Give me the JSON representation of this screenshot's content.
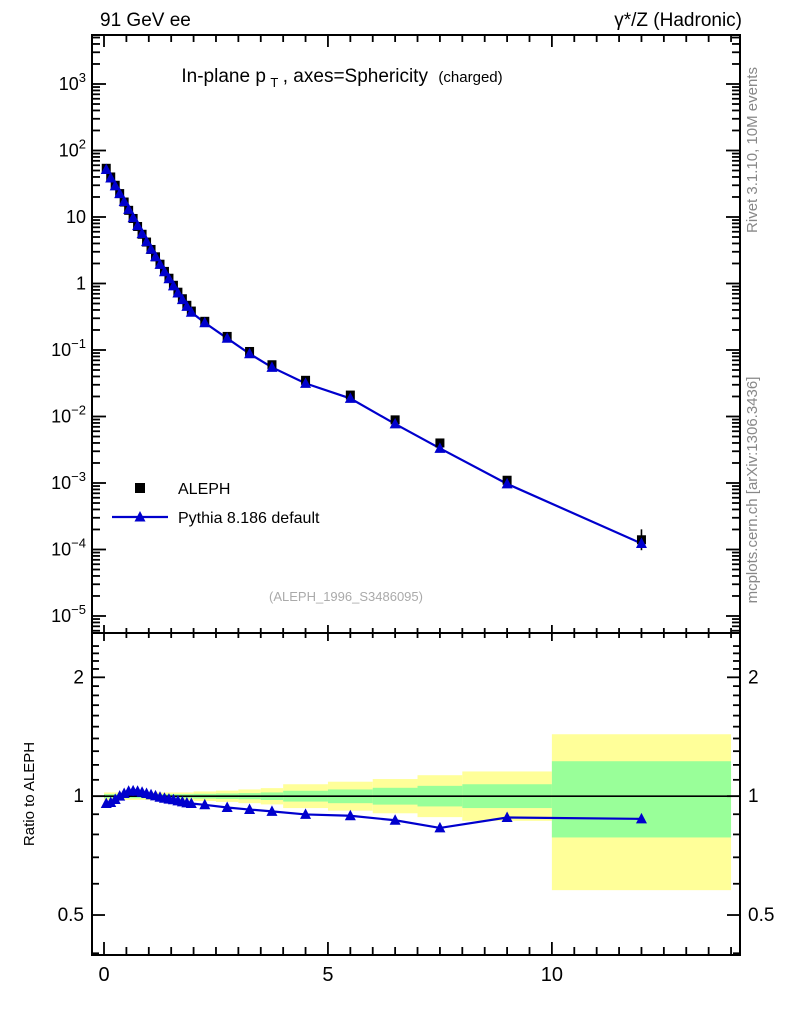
{
  "header": {
    "left": "91 GeV ee",
    "right": "γ*/Z (Hadronic)"
  },
  "title": {
    "part1": "In-plane p",
    "sub": "T",
    "part2": ", axes=Sphericity",
    "part3": "(charged)"
  },
  "side_labels": {
    "top_right": "Rivet 3.1.10,  10M events",
    "bottom_right": "mcplots.cern.ch [arXiv:1306.3436]"
  },
  "watermark": "(ALEPH_1996_S3486095)",
  "ratio_axis_label": "Ratio to ALEPH",
  "legend": [
    {
      "label": "ALEPH",
      "marker": "square",
      "color": "#000000"
    },
    {
      "label": "Pythia 8.186 default",
      "marker": "triangle",
      "color": "#0000cd"
    }
  ],
  "colors": {
    "mc_blue": "#0000cd",
    "band_yellow": "#ffff99",
    "band_green": "#99ff99",
    "frame": "#000000",
    "watermark_gray": "#aaaaaa",
    "side_label_gray": "#888888"
  },
  "chart_data": {
    "type": "line",
    "title": "In-plane pT, axes=Sphericity (charged)",
    "xlabel": "",
    "ylabel": "",
    "x": [
      0.05,
      0.15,
      0.25,
      0.35,
      0.45,
      0.55,
      0.65,
      0.75,
      0.85,
      0.95,
      1.05,
      1.15,
      1.25,
      1.35,
      1.45,
      1.55,
      1.65,
      1.75,
      1.85,
      1.95,
      2.25,
      2.75,
      3.25,
      3.75,
      4.5,
      5.5,
      6.5,
      7.5,
      9,
      12
    ],
    "series": [
      {
        "name": "ALEPH",
        "marker": "square",
        "color": "#000000",
        "values": [
          54,
          40,
          30,
          22.5,
          16.8,
          12.6,
          9.5,
          7.2,
          5.5,
          4.2,
          3.25,
          2.52,
          1.95,
          1.52,
          1.2,
          0.94,
          0.74,
          0.59,
          0.47,
          0.385,
          0.27,
          0.16,
          0.095,
          0.06,
          0.035,
          0.021,
          0.0089,
          0.004,
          0.0011,
          0.00014
        ]
      },
      {
        "name": "Pythia 8.186 default",
        "marker": "triangle",
        "color": "#0000cd",
        "values": [
          51.7,
          38.6,
          29.4,
          22.5,
          17.1,
          13.0,
          9.79,
          7.41,
          5.63,
          4.27,
          3.28,
          2.53,
          1.94,
          1.5,
          1.18,
          0.92,
          0.72,
          0.571,
          0.452,
          0.369,
          0.257,
          0.15,
          0.0879,
          0.0549,
          0.0315,
          0.0187,
          0.00773,
          0.00332,
          0.000971,
          0.000123
        ]
      }
    ],
    "ratio": {
      "name": "Pythia/ALEPH",
      "values": [
        0.958,
        0.964,
        0.981,
        1.0,
        1.016,
        1.029,
        1.031,
        1.029,
        1.023,
        1.016,
        1.008,
        1.002,
        0.994,
        0.988,
        0.983,
        0.979,
        0.973,
        0.967,
        0.962,
        0.958,
        0.951,
        0.936,
        0.925,
        0.915,
        0.899,
        0.892,
        0.869,
        0.831,
        0.883,
        0.876
      ]
    },
    "bands": [
      {
        "x0": 0,
        "x1": 2,
        "gh": 1.012,
        "gl": 0.988,
        "yh": 1.022,
        "yl": 0.978
      },
      {
        "x0": 2,
        "x1": 2.5,
        "gh": 1.014,
        "gl": 0.986,
        "yh": 1.028,
        "yl": 0.972
      },
      {
        "x0": 2.5,
        "x1": 3,
        "gh": 1.016,
        "gl": 0.984,
        "yh": 1.033,
        "yl": 0.967
      },
      {
        "x0": 3,
        "x1": 3.5,
        "gh": 1.018,
        "gl": 0.982,
        "yh": 1.04,
        "yl": 0.96
      },
      {
        "x0": 3.5,
        "x1": 4,
        "gh": 1.022,
        "gl": 0.978,
        "yh": 1.048,
        "yl": 0.953
      },
      {
        "x0": 4,
        "x1": 5,
        "gh": 1.032,
        "gl": 0.969,
        "yh": 1.072,
        "yl": 0.933
      },
      {
        "x0": 5,
        "x1": 6,
        "gh": 1.04,
        "gl": 0.96,
        "yh": 1.088,
        "yl": 0.919
      },
      {
        "x0": 6,
        "x1": 7,
        "gh": 1.05,
        "gl": 0.952,
        "yh": 1.105,
        "yl": 0.905
      },
      {
        "x0": 7,
        "x1": 8,
        "gh": 1.062,
        "gl": 0.942,
        "yh": 1.13,
        "yl": 0.885
      },
      {
        "x0": 8,
        "x1": 10,
        "gh": 1.072,
        "gl": 0.933,
        "yh": 1.155,
        "yl": 0.866
      },
      {
        "x0": 10,
        "x1": 14,
        "gh": 1.226,
        "gl": 0.786,
        "yh": 1.435,
        "yl": 0.578
      }
    ],
    "axes": {
      "x_min": -0.268,
      "x_max": 14.2,
      "x_ticks": [
        0,
        5,
        10
      ],
      "x_minor_step": 0.5,
      "y_min": 5.55e-06,
      "y_max": 5456,
      "y_decade_labels": [
        3,
        2,
        1,
        0,
        -1,
        -2,
        -3,
        -4,
        -5
      ],
      "ratio_min": 0.396,
      "ratio_max": 2.59,
      "ratio_ticks": [
        2,
        1,
        0.5
      ],
      "ratio_minor_ticks": [
        0.4,
        0.5,
        0.6,
        0.7,
        0.8,
        0.9,
        1.0,
        1.1,
        1.2,
        1.3,
        1.4,
        1.5,
        1.6,
        1.7,
        1.8,
        1.9,
        2.0,
        2.1,
        2.2,
        2.3,
        2.4
      ]
    }
  }
}
